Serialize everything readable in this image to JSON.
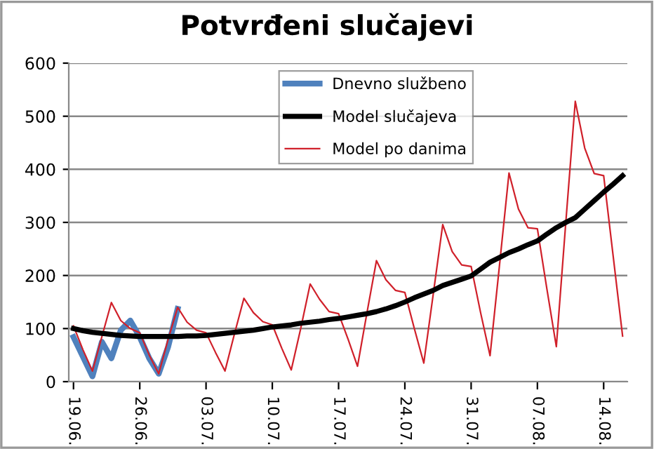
{
  "chart_data": {
    "type": "line",
    "title": "Potvrđeni slučajevi",
    "categories": [
      "19.06.",
      null,
      null,
      null,
      null,
      null,
      null,
      "26.06.",
      null,
      null,
      null,
      null,
      null,
      null,
      "03.07.",
      null,
      null,
      null,
      null,
      null,
      null,
      "10.07.",
      null,
      null,
      null,
      null,
      null,
      null,
      "17.07.",
      null,
      null,
      null,
      null,
      null,
      null,
      "24.07.",
      null,
      null,
      null,
      null,
      null,
      null,
      "31.07.",
      null,
      null,
      null,
      null,
      null,
      null,
      "07.08.",
      null,
      null,
      null,
      null,
      null,
      null,
      "14.08.",
      null,
      null
    ],
    "series": [
      {
        "name": "Dnevno službeno",
        "color": "#4f81bd",
        "values": [
          84,
          47,
          10,
          75,
          44,
          97,
          115,
          84,
          44,
          15,
          66,
          137,
          null,
          null,
          null,
          null,
          null,
          null,
          null,
          null,
          null,
          null,
          null,
          null,
          null,
          null,
          null,
          null,
          null,
          null,
          null,
          null,
          null,
          null,
          null,
          null,
          null,
          null,
          null,
          null,
          null,
          null,
          null,
          null,
          null,
          null,
          null,
          null,
          null,
          null,
          null,
          null,
          null,
          null,
          null,
          null,
          null,
          null,
          null
        ]
      },
      {
        "name": "Model slučajeva",
        "color": "#000000",
        "values": [
          100,
          96,
          93,
          91,
          89,
          87,
          86,
          85,
          85,
          85,
          85,
          85,
          86,
          86,
          87,
          89,
          91,
          93,
          95,
          97,
          100,
          103,
          105,
          107,
          110,
          112,
          114,
          117,
          119,
          122,
          125,
          128,
          132,
          137,
          143,
          150,
          158,
          165,
          172,
          181,
          187,
          193,
          199,
          212,
          225,
          234,
          243,
          250,
          258,
          265,
          278,
          290,
          300,
          309,
          325,
          341,
          357,
          372,
          388
        ]
      },
      {
        "name": "Model po danima",
        "color": "#d0202a",
        "values": [
          105,
          60,
          20,
          85,
          149,
          115,
          100,
          92,
          50,
          15,
          80,
          140,
          112,
          97,
          92,
          55,
          20,
          90,
          157,
          130,
          113,
          107,
          63,
          22,
          100,
          184,
          155,
          132,
          128,
          80,
          29,
          130,
          228,
          192,
          172,
          168,
          100,
          35,
          165,
          296,
          245,
          220,
          217,
          130,
          49,
          220,
          393,
          325,
          290,
          288,
          175,
          66,
          300,
          528,
          440,
          392,
          388,
          237,
          86
        ]
      }
    ],
    "ylim": [
      0,
      600
    ],
    "yticks": [
      0,
      100,
      200,
      300,
      400,
      500,
      600
    ],
    "grid": "y",
    "legend": "top center"
  }
}
